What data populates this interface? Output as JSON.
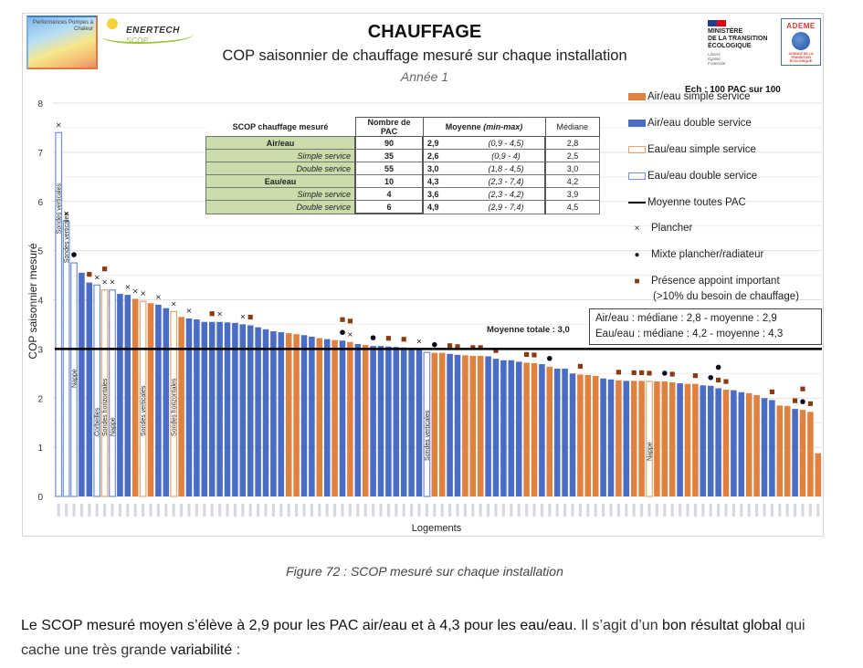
{
  "header": {
    "logo_left_text": "Performances Pompes à Chaleur",
    "logo_enertech": "ENERTECH",
    "logo_enertech_sub": "SCOP",
    "title": "CHAUFFAGE",
    "subtitle": "COP saisonnier de chauffage mesuré sur chaque installation",
    "year": "Année 1",
    "ministere": [
      "MINISTÈRE",
      "DE LA TRANSITION",
      "ÉCOLOGIQUE"
    ],
    "devise": [
      "Liberté",
      "Égalité",
      "Fraternité"
    ],
    "ademe": "ADEME",
    "ademe_sub": "AGENCE DE LA TRANSITION ÉCOLOGIQUE",
    "sample": "Ech : 100 PAC sur 100"
  },
  "table": {
    "headers": [
      "SCOP chauffage mesuré",
      "Nombre de PAC",
      "Moyenne",
      "(min-max)",
      "Médiane"
    ],
    "rows": [
      {
        "label": "Air/eau",
        "group": true,
        "n": "90",
        "mean": "2,9",
        "range": "(0,9 - 4,5)",
        "median": "2,8"
      },
      {
        "label": "Simple service",
        "group": false,
        "n": "35",
        "mean": "2,6",
        "range": "(0,9 - 4)",
        "median": "2,5"
      },
      {
        "label": "Double service",
        "group": false,
        "n": "55",
        "mean": "3,0",
        "range": "(1,8 - 4,5)",
        "median": "3,0"
      },
      {
        "label": "Eau/eau",
        "group": true,
        "n": "10",
        "mean": "4,3",
        "range": "(2,3 - 7,4)",
        "median": "4,2"
      },
      {
        "label": "Simple service",
        "group": false,
        "n": "4",
        "mean": "3,6",
        "range": "(2,3 - 4,2)",
        "median": "3,9"
      },
      {
        "label": "Double service",
        "group": false,
        "n": "6",
        "mean": "4,9",
        "range": "(2,9 - 7,4)",
        "median": "4,5"
      }
    ]
  },
  "legend": {
    "items": [
      {
        "key": "as",
        "label": "Air/eau simple service"
      },
      {
        "key": "ad",
        "label": "Air/eau double service"
      },
      {
        "key": "es",
        "label": "Eau/eau simple service"
      },
      {
        "key": "ed",
        "label": "Eau/eau double service"
      },
      {
        "key": "avg",
        "label": "Moyenne toutes PAC"
      },
      {
        "key": "x",
        "label": "Plancher"
      },
      {
        "key": "dot",
        "label": "Mixte plancher/radiateur"
      },
      {
        "key": "sq",
        "label": "Présence appoint important",
        "label2": "(>10% du besoin de chauffage)"
      }
    ]
  },
  "summary": {
    "line1": "Air/eau : médiane : 2,8 - moyenne : 2,9",
    "line2": "Eau/eau : médiane : 4,2 - moyenne : 4,3"
  },
  "colors": {
    "air_simple": "#e0813f",
    "air_double": "#4a6cc4",
    "eau_simple_outline": "#e9a46e",
    "eau_double_outline": "#6f8fd6",
    "marker_square": "#8b3a12",
    "average_line": "#000000"
  },
  "chart_data": {
    "type": "bar",
    "title": "CHAUFFAGE",
    "subtitle": "COP saisonnier de chauffage mesuré sur chaque installation",
    "xlabel": "Logements",
    "ylabel": "COP saisonnier mesuré",
    "ylim": [
      0,
      8
    ],
    "yticks": [
      0,
      1,
      2,
      3,
      4,
      5,
      6,
      7,
      8
    ],
    "grid": true,
    "average_line": {
      "value": 3.0,
      "label": "Moyenne totale : 3,0"
    },
    "legend_position": "right",
    "series_keys": {
      "as": "Air/eau simple service",
      "ad": "Air/eau double service",
      "es": "Eau/eau simple service",
      "ed": "Eau/eau double service"
    },
    "bars": [
      {
        "t": "ed",
        "v": 7.4,
        "m": [
          "x"
        ],
        "a": "Sondes verticales"
      },
      {
        "t": "ed",
        "v": 5.6,
        "m": [
          "x"
        ],
        "a": "Sondes verticales"
      },
      {
        "t": "ed",
        "v": 4.75,
        "m": [
          "dot"
        ],
        "a": "Nappe"
      },
      {
        "t": "ad",
        "v": 4.55
      },
      {
        "t": "ad",
        "v": 4.35,
        "m": [
          "sq"
        ]
      },
      {
        "t": "ed",
        "v": 4.3,
        "m": [
          "x"
        ],
        "a": "Corbeilles"
      },
      {
        "t": "es",
        "v": 4.2,
        "m": [
          "sq",
          "x"
        ],
        "a": "Sondes horizontales"
      },
      {
        "t": "ed",
        "v": 4.2,
        "m": [
          "x"
        ],
        "a": "Nappe"
      },
      {
        "t": "ad",
        "v": 4.12
      },
      {
        "t": "ad",
        "v": 4.1,
        "m": [
          "x"
        ]
      },
      {
        "t": "as",
        "v": 4.02,
        "m": [
          "x"
        ]
      },
      {
        "t": "es",
        "v": 3.97,
        "m": [
          "x"
        ],
        "a": "Sondes verticales"
      },
      {
        "t": "as",
        "v": 3.93
      },
      {
        "t": "ad",
        "v": 3.9,
        "m": [
          "x"
        ]
      },
      {
        "t": "ad",
        "v": 3.83
      },
      {
        "t": "es",
        "v": 3.76,
        "m": [
          "x"
        ],
        "a": "Sondes horizontales"
      },
      {
        "t": "as",
        "v": 3.65
      },
      {
        "t": "ad",
        "v": 3.62,
        "m": [
          "x"
        ]
      },
      {
        "t": "ad",
        "v": 3.6
      },
      {
        "t": "ad",
        "v": 3.55
      },
      {
        "t": "ad",
        "v": 3.55,
        "m": [
          "sq"
        ]
      },
      {
        "t": "ad",
        "v": 3.55,
        "m": [
          "x"
        ]
      },
      {
        "t": "ad",
        "v": 3.54
      },
      {
        "t": "ad",
        "v": 3.53
      },
      {
        "t": "ad",
        "v": 3.5,
        "m": [
          "x"
        ]
      },
      {
        "t": "ad",
        "v": 3.48,
        "m": [
          "sq"
        ]
      },
      {
        "t": "ad",
        "v": 3.44
      },
      {
        "t": "ad",
        "v": 3.4
      },
      {
        "t": "ad",
        "v": 3.36
      },
      {
        "t": "ad",
        "v": 3.34
      },
      {
        "t": "as",
        "v": 3.32
      },
      {
        "t": "as",
        "v": 3.3
      },
      {
        "t": "ad",
        "v": 3.28
      },
      {
        "t": "ad",
        "v": 3.25
      },
      {
        "t": "as",
        "v": 3.22
      },
      {
        "t": "ad",
        "v": 3.2
      },
      {
        "t": "as",
        "v": 3.18
      },
      {
        "t": "ad",
        "v": 3.17,
        "m": [
          "sq",
          "dot"
        ]
      },
      {
        "t": "as",
        "v": 3.14,
        "m": [
          "sq",
          "x"
        ]
      },
      {
        "t": "ad",
        "v": 3.1
      },
      {
        "t": "as",
        "v": 3.08
      },
      {
        "t": "ad",
        "v": 3.06,
        "m": [
          "dot"
        ]
      },
      {
        "t": "ad",
        "v": 3.06
      },
      {
        "t": "ad",
        "v": 3.05,
        "m": [
          "sq"
        ]
      },
      {
        "t": "ad",
        "v": 3.04
      },
      {
        "t": "ad",
        "v": 3.03,
        "m": [
          "sq"
        ]
      },
      {
        "t": "ad",
        "v": 3.02
      },
      {
        "t": "ad",
        "v": 3.0,
        "m": [
          "x"
        ]
      },
      {
        "t": "ed",
        "v": 2.93,
        "a": "Sondes verticales"
      },
      {
        "t": "as",
        "v": 2.92,
        "m": [
          "dot"
        ]
      },
      {
        "t": "as",
        "v": 2.92
      },
      {
        "t": "ad",
        "v": 2.9,
        "m": [
          "sq"
        ]
      },
      {
        "t": "ad",
        "v": 2.88,
        "m": [
          "sq"
        ]
      },
      {
        "t": "as",
        "v": 2.87
      },
      {
        "t": "as",
        "v": 2.86,
        "m": [
          "sq"
        ]
      },
      {
        "t": "as",
        "v": 2.86,
        "m": [
          "sq"
        ]
      },
      {
        "t": "ad",
        "v": 2.85
      },
      {
        "t": "ad",
        "v": 2.8,
        "m": [
          "sq"
        ]
      },
      {
        "t": "ad",
        "v": 2.77
      },
      {
        "t": "ad",
        "v": 2.77
      },
      {
        "t": "ad",
        "v": 2.74
      },
      {
        "t": "as",
        "v": 2.72,
        "m": [
          "sq"
        ]
      },
      {
        "t": "as",
        "v": 2.71,
        "m": [
          "sq"
        ]
      },
      {
        "t": "ad",
        "v": 2.69
      },
      {
        "t": "as",
        "v": 2.64,
        "m": [
          "dot"
        ]
      },
      {
        "t": "ad",
        "v": 2.6
      },
      {
        "t": "ad",
        "v": 2.6
      },
      {
        "t": "ad",
        "v": 2.5
      },
      {
        "t": "as",
        "v": 2.48,
        "m": [
          "sq"
        ]
      },
      {
        "t": "as",
        "v": 2.47
      },
      {
        "t": "as",
        "v": 2.45
      },
      {
        "t": "ad",
        "v": 2.4
      },
      {
        "t": "ad",
        "v": 2.38
      },
      {
        "t": "as",
        "v": 2.36,
        "m": [
          "sq"
        ]
      },
      {
        "t": "ad",
        "v": 2.35
      },
      {
        "t": "as",
        "v": 2.35,
        "m": [
          "sq"
        ]
      },
      {
        "t": "as",
        "v": 2.35,
        "m": [
          "sq"
        ]
      },
      {
        "t": "es",
        "v": 2.34,
        "m": [
          "sq"
        ],
        "a": "Nappe"
      },
      {
        "t": "as",
        "v": 2.34
      },
      {
        "t": "as",
        "v": 2.34,
        "m": [
          "dot"
        ]
      },
      {
        "t": "as",
        "v": 2.32,
        "m": [
          "sq"
        ]
      },
      {
        "t": "ad",
        "v": 2.3
      },
      {
        "t": "as",
        "v": 2.29
      },
      {
        "t": "as",
        "v": 2.29,
        "m": [
          "sq"
        ]
      },
      {
        "t": "ad",
        "v": 2.26
      },
      {
        "t": "ad",
        "v": 2.25,
        "m": [
          "dot"
        ]
      },
      {
        "t": "ad",
        "v": 2.2,
        "m": [
          "dot",
          "sq"
        ]
      },
      {
        "t": "as",
        "v": 2.17,
        "m": [
          "sq"
        ]
      },
      {
        "t": "ad",
        "v": 2.16
      },
      {
        "t": "ad",
        "v": 2.12
      },
      {
        "t": "as",
        "v": 2.1
      },
      {
        "t": "as",
        "v": 2.06
      },
      {
        "t": "ad",
        "v": 2.0
      },
      {
        "t": "ad",
        "v": 1.96,
        "m": [
          "sq"
        ]
      },
      {
        "t": "as",
        "v": 1.85
      },
      {
        "t": "as",
        "v": 1.84
      },
      {
        "t": "ad",
        "v": 1.78,
        "m": [
          "sq"
        ]
      },
      {
        "t": "as",
        "v": 1.76,
        "m": [
          "sq",
          "dot"
        ]
      },
      {
        "t": "as",
        "v": 1.72,
        "m": [
          "sq"
        ]
      },
      {
        "t": "as",
        "v": 0.88
      }
    ]
  },
  "caption": "Figure 72 : SCOP mesuré sur chaque installation",
  "paragraph": {
    "part1": "Le SCOP mesuré moyen s’élève à 2,9 pour les PAC air/eau et à 4,3 pour les eau/eau.",
    "part2": " Il s’agit d’un ",
    "part3": "bon résultat global",
    "part4": " qui cache une très grande ",
    "part5": "variabilité",
    "part6": " :"
  }
}
